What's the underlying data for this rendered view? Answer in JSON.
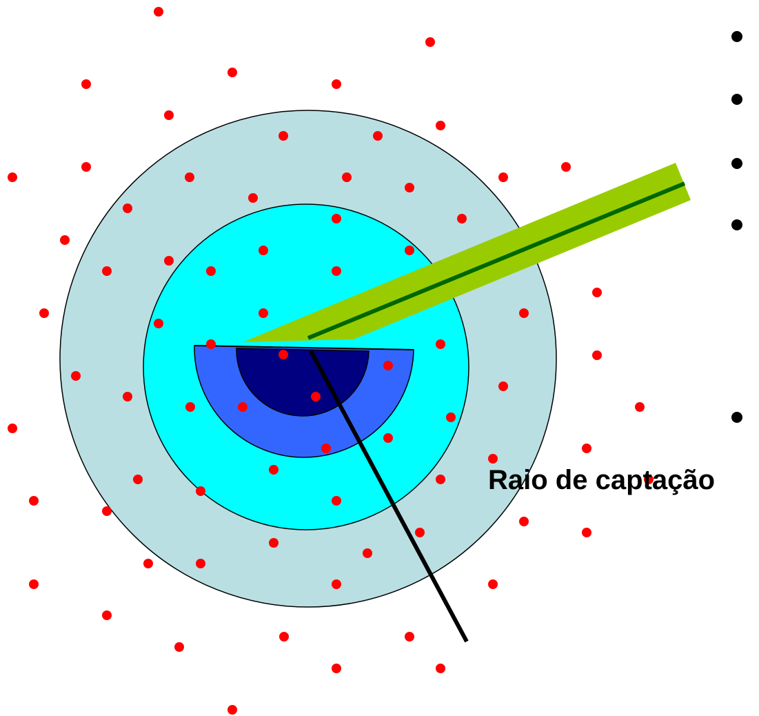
{
  "caption": {
    "label": "Raio de captação"
  },
  "colors": {
    "background": "#ffffff",
    "outer_ring": "#b9dfe3",
    "middle_ring": "#00ffff",
    "inner_half_ring": "#3366ff",
    "core_half_disc": "#000080",
    "electrode_body": "#99cc00",
    "electrode_core": "#006600",
    "radius_line": "#000000",
    "neuron_dot": "#ff0000",
    "bullet": "#000000"
  },
  "icons": {
    "neuron": "red-dot",
    "bullet": "black-bullet"
  },
  "bullet_count": 5,
  "neuron_count": 92
}
